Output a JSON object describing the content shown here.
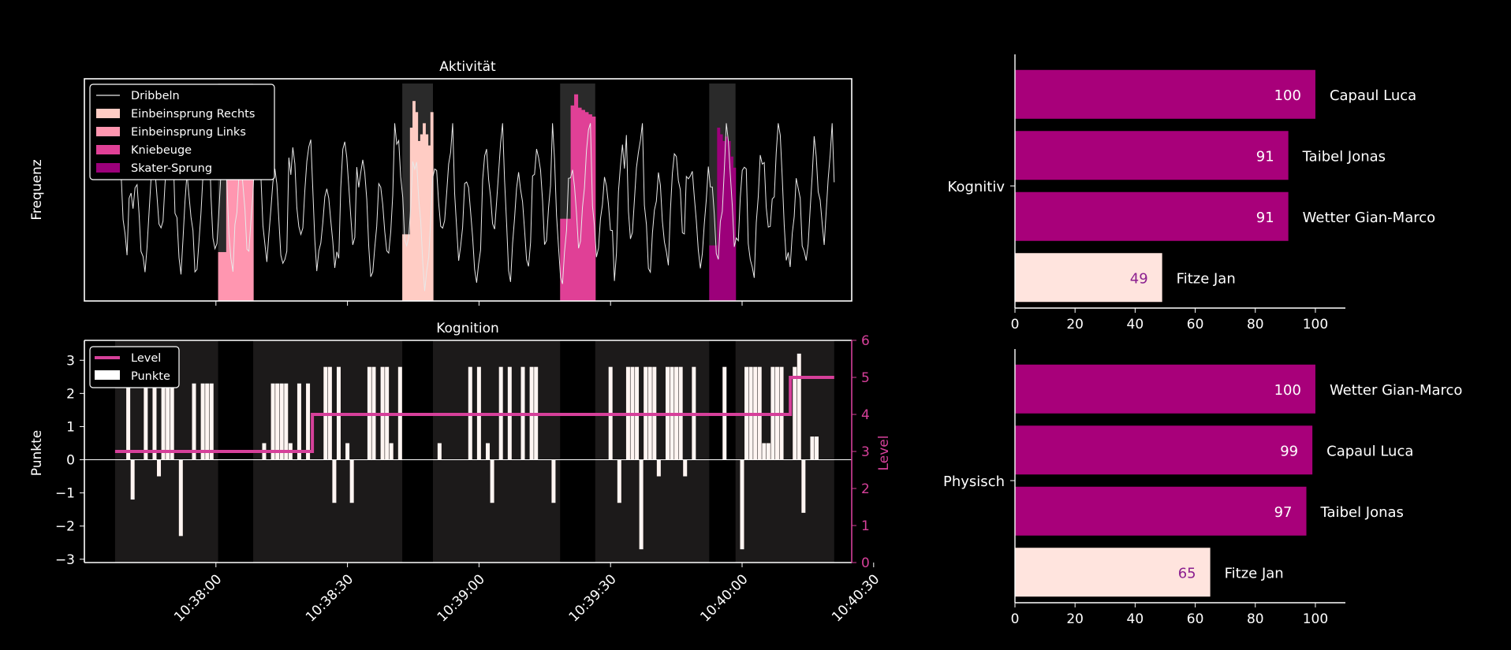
{
  "colors": {
    "background": "#000000",
    "foreground": "#ffffff",
    "shade": "#1c1a1a",
    "level_line": "#d6409a",
    "bar_top": "#a8007a",
    "bar_low": "#ffe4de",
    "label_low": "#8b1f8f",
    "dribbeln": "#e8e8e8",
    "einbein_rechts": "#ffccc4",
    "einbein_links": "#ff96b0",
    "kniebeuge": "#e04096",
    "skater": "#9c007a"
  },
  "chart_data": [
    {
      "type": "area",
      "title": "Aktivität",
      "xlabel": "",
      "ylabel": "Frequenz",
      "x_unit": "seconds",
      "x_start": "10:37:35",
      "xlim": [
        -5,
        170
      ],
      "ylim": [
        0,
        1
      ],
      "legend_position": "top-left",
      "legend": [
        "Dribbeln",
        "Einbeinsprung Rechts",
        "Einbeinsprung Links",
        "Kniebeuge",
        "Skater-Sprung"
      ],
      "dribbeln_line": {
        "name": "Dribbeln",
        "x_range": [
          2,
          166
        ],
        "samples": 360,
        "seed": 7
      },
      "blocks": [
        {
          "exercise": "Einbeinsprung Links",
          "color_key": "einbein_links",
          "x": [
            25.5,
            33.5
          ],
          "bars": [
            0.22,
            0.22,
            0.22,
            0.55,
            0.8,
            0.75,
            0.68,
            0.62,
            0.82,
            0.78,
            0.7,
            0.65,
            0.6
          ]
        },
        {
          "exercise": "Einbeinsprung Rechts",
          "color_key": "einbein_rechts",
          "x": [
            67.5,
            74.5
          ],
          "bars": [
            0.3,
            0.3,
            0.3,
            0.78,
            0.9,
            0.85,
            0.72,
            0.75,
            0.8,
            0.75,
            0.7,
            0.85
          ]
        },
        {
          "exercise": "Kniebeuge",
          "color_key": "kniebeuge",
          "x": [
            103.5,
            111.5
          ],
          "bars": [
            0.37,
            0.37,
            0.37,
            0.88,
            0.93,
            0.87,
            0.86,
            0.85,
            0.84,
            0.83
          ]
        },
        {
          "exercise": "Skater-Sprung",
          "color_key": "skater",
          "x": [
            137.5,
            143.5
          ],
          "bars": [
            0.25,
            0.25,
            0.25,
            0.78,
            0.75,
            0.72,
            0.74,
            0.72,
            0.65,
            0.6
          ]
        }
      ]
    },
    {
      "type": "bar",
      "title": "Kognition",
      "ylabel": "Punkte",
      "ylabel_right": "Level",
      "x_unit": "seconds",
      "x_start": "10:37:35",
      "xlim": [
        -5,
        170
      ],
      "ylim": [
        -3.1,
        3.6
      ],
      "ylim_right": [
        0,
        6
      ],
      "y_ticks": [
        -3,
        -2,
        -1,
        0,
        1,
        2,
        3
      ],
      "y_ticks_right": [
        0,
        1,
        2,
        3,
        4,
        5,
        6
      ],
      "x_ticks": [
        "10:38:00",
        "10:38:30",
        "10:39:00",
        "10:39:30",
        "10:40:00",
        "10:40:30"
      ],
      "x_tick_seconds": [
        25,
        55,
        85,
        115,
        145,
        175
      ],
      "legend": [
        "Level",
        "Punkte"
      ],
      "legend_position": "top-left",
      "shaded_intervals": [
        [
          2,
          25.5
        ],
        [
          33.5,
          67.5
        ],
        [
          74.5,
          103.5
        ],
        [
          111.5,
          137.5
        ],
        [
          143.5,
          166
        ]
      ],
      "level_series": {
        "name": "Level",
        "x": [
          2,
          47,
          47,
          156,
          156,
          166
        ],
        "values": [
          3,
          3,
          4,
          4,
          5,
          5
        ]
      },
      "punkte_series": {
        "name": "Punkte",
        "x": [
          5,
          6,
          9,
          11,
          12,
          13,
          14,
          15,
          17,
          20,
          22,
          23,
          24,
          36,
          38,
          39,
          40,
          41,
          42,
          44,
          46,
          50,
          51,
          52,
          53,
          55,
          56,
          60,
          61,
          63,
          64,
          65,
          67,
          76,
          83,
          85,
          87,
          88,
          90,
          92,
          95,
          97,
          98,
          102,
          115,
          117,
          119,
          120,
          121,
          122,
          123,
          124,
          125,
          126,
          128,
          129,
          130,
          131,
          132,
          134,
          141,
          145,
          146,
          147,
          148,
          149,
          150,
          151,
          152,
          153,
          154,
          157,
          158,
          159,
          161,
          162
        ],
        "values": [
          2.3,
          -1.2,
          2.3,
          2.3,
          -0.5,
          2.3,
          2.3,
          2.3,
          -2.3,
          2.3,
          2.3,
          2.3,
          2.3,
          0.5,
          2.3,
          2.3,
          2.3,
          2.3,
          0.5,
          2.3,
          2.3,
          2.8,
          2.8,
          -1.3,
          2.8,
          0.5,
          -1.3,
          2.8,
          2.8,
          2.8,
          2.8,
          0.5,
          2.8,
          0.5,
          2.8,
          2.8,
          0.5,
          -1.3,
          2.8,
          2.8,
          2.8,
          2.8,
          2.8,
          -1.3,
          2.8,
          -1.3,
          2.8,
          2.8,
          2.8,
          -2.7,
          2.8,
          2.8,
          2.8,
          -0.5,
          2.8,
          2.8,
          2.8,
          2.8,
          -0.5,
          2.8,
          2.8,
          -2.7,
          2.8,
          2.8,
          2.8,
          2.8,
          0.5,
          0.5,
          2.8,
          2.8,
          2.8,
          2.8,
          3.2,
          -1.6,
          0.7,
          0.7
        ]
      }
    },
    {
      "type": "bar",
      "orientation": "horizontal",
      "group_label": "Kognitiv",
      "xlim": [
        0,
        105
      ],
      "x_ticks": [
        0,
        20,
        40,
        60,
        80,
        100
      ],
      "categories": [
        "Capaul Luca",
        "Taibel Jonas",
        "Wetter Gian-Marco",
        "Fitze Jan"
      ],
      "values": [
        100,
        91,
        91,
        49
      ]
    },
    {
      "type": "bar",
      "orientation": "horizontal",
      "group_label": "Physisch",
      "xlim": [
        0,
        105
      ],
      "x_ticks": [
        0,
        20,
        40,
        60,
        80,
        100
      ],
      "categories": [
        "Wetter Gian-Marco",
        "Capaul Luca",
        "Taibel Jonas",
        "Fitze Jan"
      ],
      "values": [
        100,
        99,
        97,
        65
      ]
    }
  ]
}
